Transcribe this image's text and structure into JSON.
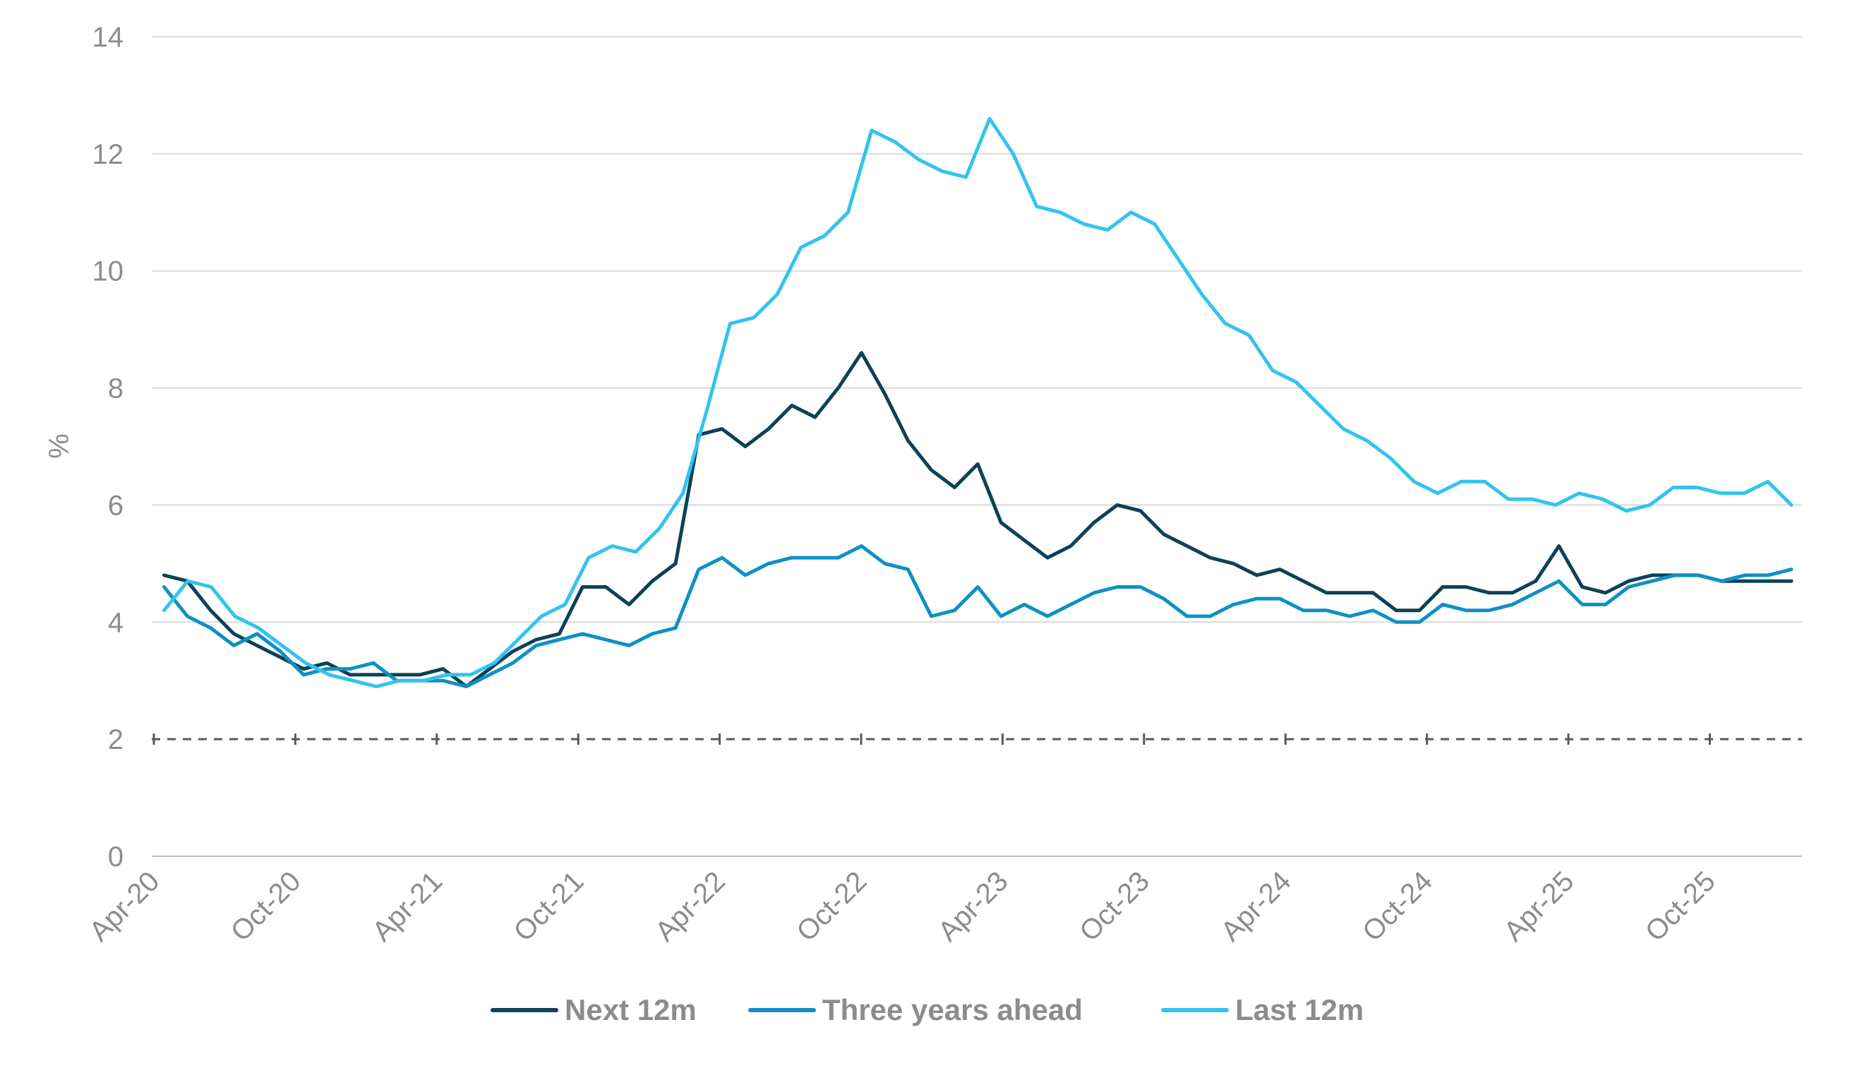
{
  "chart_data": {
    "type": "line",
    "title": "",
    "xlabel": "",
    "ylabel": "%",
    "ylim": [
      0,
      14
    ],
    "yticks": [
      "0",
      "2",
      "4",
      "6",
      "8",
      "10",
      "12",
      "14"
    ],
    "xtick_labels": [
      "Apr-20",
      "Oct-20",
      "Apr-21",
      "Oct-21",
      "Apr-22",
      "Oct-22",
      "Apr-23",
      "Oct-23",
      "Apr-24",
      "Oct-24",
      "Apr-25",
      "Oct-25"
    ],
    "x_start": "2020-04",
    "x_end": "2026-02",
    "reference_line": {
      "value": 2,
      "style": "dashed"
    },
    "grid": "horizontal",
    "legend_position": "bottom",
    "series": [
      {
        "name": "Next 12m",
        "color": "#0d4159",
        "values": [
          4.8,
          4.7,
          4.2,
          3.8,
          3.6,
          3.4,
          3.2,
          3.3,
          3.1,
          3.1,
          3.1,
          3.1,
          3.2,
          2.9,
          3.2,
          3.5,
          3.7,
          3.8,
          4.6,
          4.6,
          4.3,
          4.7,
          5.0,
          7.2,
          7.3,
          7.0,
          7.3,
          7.7,
          7.5,
          8.0,
          8.6,
          7.9,
          7.1,
          6.6,
          6.3,
          6.7,
          5.7,
          5.4,
          5.1,
          5.3,
          5.7,
          6.0,
          5.9,
          5.5,
          5.3,
          5.1,
          5.0,
          4.8,
          4.9,
          4.7,
          4.5,
          4.5,
          4.5,
          4.2,
          4.2,
          4.6,
          4.6,
          4.5,
          4.5,
          4.7,
          5.3,
          4.6,
          4.5,
          4.7,
          4.8,
          4.8,
          4.8,
          4.7,
          4.7,
          4.7,
          4.7
        ]
      },
      {
        "name": "Three years ahead",
        "color": "#0f90c4",
        "values": [
          4.6,
          4.1,
          3.9,
          3.6,
          3.8,
          3.5,
          3.1,
          3.2,
          3.2,
          3.3,
          3.0,
          3.0,
          3.0,
          2.9,
          3.1,
          3.3,
          3.6,
          3.7,
          3.8,
          3.7,
          3.6,
          3.8,
          3.9,
          4.9,
          5.1,
          4.8,
          5.0,
          5.1,
          5.1,
          5.1,
          5.3,
          5.0,
          4.9,
          4.1,
          4.2,
          4.6,
          4.1,
          4.3,
          4.1,
          4.3,
          4.5,
          4.6,
          4.6,
          4.4,
          4.1,
          4.1,
          4.3,
          4.4,
          4.4,
          4.2,
          4.2,
          4.1,
          4.2,
          4.0,
          4.0,
          4.3,
          4.2,
          4.2,
          4.3,
          4.5,
          4.7,
          4.3,
          4.3,
          4.6,
          4.7,
          4.8,
          4.8,
          4.7,
          4.8,
          4.8,
          4.9
        ]
      },
      {
        "name": "Last 12m",
        "color": "#33c3ef",
        "values": [
          4.2,
          4.7,
          4.6,
          4.1,
          3.9,
          3.6,
          3.3,
          3.1,
          3.0,
          2.9,
          3.0,
          3.0,
          3.1,
          3.1,
          3.3,
          3.7,
          4.1,
          4.3,
          5.1,
          5.3,
          5.2,
          5.6,
          6.2,
          7.6,
          9.1,
          9.2,
          9.6,
          10.4,
          10.6,
          11.0,
          12.4,
          12.2,
          11.9,
          11.7,
          11.6,
          12.6,
          12.0,
          11.1,
          11.0,
          10.8,
          10.7,
          11.0,
          10.8,
          10.2,
          9.6,
          9.1,
          8.9,
          8.3,
          8.1,
          7.7,
          7.3,
          7.1,
          6.8,
          6.4,
          6.2,
          6.4,
          6.4,
          6.1,
          6.1,
          6.0,
          6.2,
          6.1,
          5.9,
          6.0,
          6.3,
          6.3,
          6.2,
          6.2,
          6.4,
          6.0
        ]
      }
    ]
  }
}
